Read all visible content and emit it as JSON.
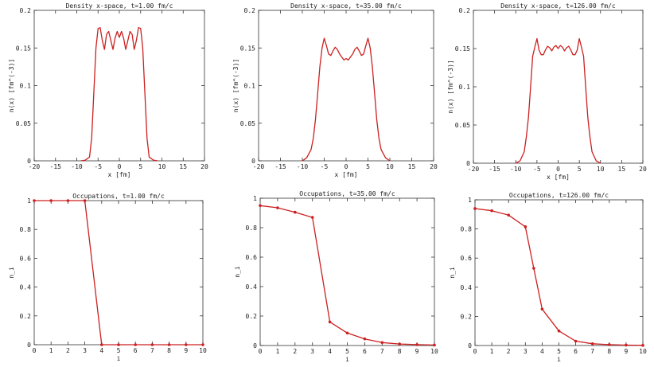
{
  "chart_data": [
    {
      "type": "line",
      "title": "Density x-space, t=1.00 fm/c",
      "xlabel": "x [fm]",
      "ylabel": "n(x) [fm^(-3)]",
      "xlim": [
        -20,
        20
      ],
      "ylim": [
        0,
        0.2
      ],
      "xticks": [
        "-20",
        "-15",
        "-10",
        "-5",
        "0",
        "5",
        "10",
        "15",
        "20"
      ],
      "yticks": [
        "0",
        "0.05",
        "0.1",
        "0.15",
        "0.2"
      ],
      "grid": false,
      "color": "#cc2020",
      "markers": false,
      "series": [
        {
          "x": [
            -9,
            -8,
            -7,
            -6.5,
            -6,
            -5.5,
            -5,
            -4.5,
            -4,
            -3.5,
            -3,
            -2.5,
            -2,
            -1.5,
            -1,
            -0.5,
            0,
            0.5,
            1,
            1.5,
            2,
            2.5,
            3,
            3.5,
            4,
            4.5,
            5,
            5.5,
            6,
            6.5,
            7,
            8,
            9
          ],
          "y": [
            0,
            0.001,
            0.005,
            0.03,
            0.09,
            0.15,
            0.176,
            0.177,
            0.16,
            0.148,
            0.168,
            0.172,
            0.16,
            0.148,
            0.163,
            0.172,
            0.164,
            0.172,
            0.163,
            0.148,
            0.16,
            0.172,
            0.168,
            0.148,
            0.16,
            0.177,
            0.176,
            0.15,
            0.09,
            0.03,
            0.005,
            0.001,
            0
          ]
        }
      ]
    },
    {
      "type": "line",
      "title": "Density x-space, t=35.00 fm/c",
      "xlabel": "x [fm]",
      "ylabel": "n(x) [fm^(-3)]",
      "xlim": [
        -20,
        20
      ],
      "ylim": [
        0,
        0.2
      ],
      "xticks": [
        "-20",
        "-15",
        "-10",
        "-5",
        "0",
        "5",
        "10",
        "15",
        "20"
      ],
      "yticks": [
        "0",
        "0.05",
        "0.1",
        "0.15",
        "0.2"
      ],
      "grid": false,
      "color": "#cc2020",
      "markers": false,
      "series": [
        {
          "x": [
            -10,
            -9,
            -8,
            -7.5,
            -7,
            -6.5,
            -6,
            -5.5,
            -5,
            -4.5,
            -4,
            -3.5,
            -3,
            -2.5,
            -2,
            -1.5,
            -1,
            -0.5,
            0,
            0.5,
            1,
            1.5,
            2,
            2.5,
            3,
            3.5,
            4,
            4.5,
            5,
            5.5,
            6,
            6.5,
            7,
            7.5,
            8,
            9,
            10
          ],
          "y": [
            0,
            0.004,
            0.015,
            0.03,
            0.055,
            0.09,
            0.125,
            0.15,
            0.163,
            0.153,
            0.142,
            0.14,
            0.146,
            0.151,
            0.148,
            0.142,
            0.138,
            0.134,
            0.136,
            0.134,
            0.138,
            0.142,
            0.148,
            0.151,
            0.146,
            0.14,
            0.142,
            0.153,
            0.163,
            0.15,
            0.125,
            0.09,
            0.055,
            0.03,
            0.015,
            0.004,
            0
          ]
        }
      ]
    },
    {
      "type": "line",
      "title": "Density x-space, t=126.00 fm/c",
      "xlabel": "x [fm]",
      "ylabel": "n(x) [fm^(-3)]",
      "xlim": [
        -20,
        20
      ],
      "ylim": [
        0,
        0.2
      ],
      "xticks": [
        "-20",
        "-15",
        "-10",
        "-5",
        "0",
        "5",
        "10",
        "15",
        "20"
      ],
      "yticks": [
        "0",
        "0.05",
        "0.1",
        "0.15",
        "0.2"
      ],
      "grid": false,
      "color": "#cc2020",
      "markers": false,
      "series": [
        {
          "x": [
            -10,
            -9,
            -8,
            -7.5,
            -7,
            -6.5,
            -6,
            -5.5,
            -5,
            -4.5,
            -4,
            -3.5,
            -3,
            -2.5,
            -2,
            -1.5,
            -1,
            -0.5,
            0,
            0.5,
            1,
            1.5,
            2,
            2.5,
            3,
            3.5,
            4,
            4.5,
            5,
            5.5,
            6,
            6.5,
            7,
            7.5,
            8,
            9,
            10
          ],
          "y": [
            0,
            0.003,
            0.015,
            0.035,
            0.06,
            0.1,
            0.14,
            0.152,
            0.163,
            0.148,
            0.142,
            0.142,
            0.148,
            0.153,
            0.151,
            0.147,
            0.152,
            0.154,
            0.15,
            0.154,
            0.152,
            0.147,
            0.151,
            0.153,
            0.148,
            0.142,
            0.142,
            0.148,
            0.163,
            0.152,
            0.14,
            0.1,
            0.06,
            0.035,
            0.015,
            0.003,
            0
          ]
        }
      ]
    },
    {
      "type": "line",
      "title": "Occupations, t=1.00 fm/c",
      "xlabel": "i",
      "ylabel": "n_i",
      "xlim": [
        0,
        10
      ],
      "ylim": [
        0,
        1
      ],
      "xticks": [
        "0",
        "1",
        "2",
        "3",
        "4",
        "5",
        "6",
        "7",
        "8",
        "9",
        "10"
      ],
      "yticks": [
        "0",
        "0.2",
        "0.4",
        "0.6",
        "0.8",
        "1"
      ],
      "grid": false,
      "color": "#cc2020",
      "markers": true,
      "series": [
        {
          "x": [
            0,
            1,
            2,
            3,
            4,
            5,
            6,
            7,
            8,
            9,
            10
          ],
          "y": [
            1,
            1,
            1,
            1,
            0,
            0,
            0,
            0,
            0,
            0,
            0
          ]
        }
      ]
    },
    {
      "type": "line",
      "title": "Occupations, t=35.00 fm/c",
      "xlabel": "i",
      "ylabel": "n_i",
      "xlim": [
        0,
        10
      ],
      "ylim": [
        0,
        1
      ],
      "xticks": [
        "0",
        "1",
        "2",
        "3",
        "4",
        "5",
        "6",
        "7",
        "8",
        "9",
        "10"
      ],
      "yticks": [
        "0",
        "0.2",
        "0.4",
        "0.6",
        "0.8",
        "1"
      ],
      "grid": false,
      "color": "#cc2020",
      "markers": true,
      "series": [
        {
          "x": [
            0,
            1,
            2,
            3,
            4,
            5,
            6,
            7,
            8,
            9,
            10
          ],
          "y": [
            0.95,
            0.935,
            0.905,
            0.87,
            0.16,
            0.085,
            0.045,
            0.02,
            0.01,
            0.006,
            0.003
          ]
        }
      ]
    },
    {
      "type": "line",
      "title": "Occupations, t=126.00 fm/c",
      "xlabel": "i",
      "ylabel": "n_i",
      "xlim": [
        0,
        10
      ],
      "ylim": [
        0,
        1
      ],
      "xticks": [
        "0",
        "1",
        "2",
        "3",
        "4",
        "5",
        "6",
        "7",
        "8",
        "9",
        "10"
      ],
      "yticks": [
        "0",
        "0.2",
        "0.4",
        "0.6",
        "0.8",
        "1"
      ],
      "grid": false,
      "color": "#cc2020",
      "markers": true,
      "series": [
        {
          "x": [
            0,
            1,
            2,
            3,
            3.5,
            4,
            5,
            6,
            7,
            8,
            9,
            10
          ],
          "y": [
            0.94,
            0.925,
            0.895,
            0.815,
            0.53,
            0.25,
            0.1,
            0.03,
            0.012,
            0.006,
            0.003,
            0.001
          ]
        }
      ]
    }
  ]
}
